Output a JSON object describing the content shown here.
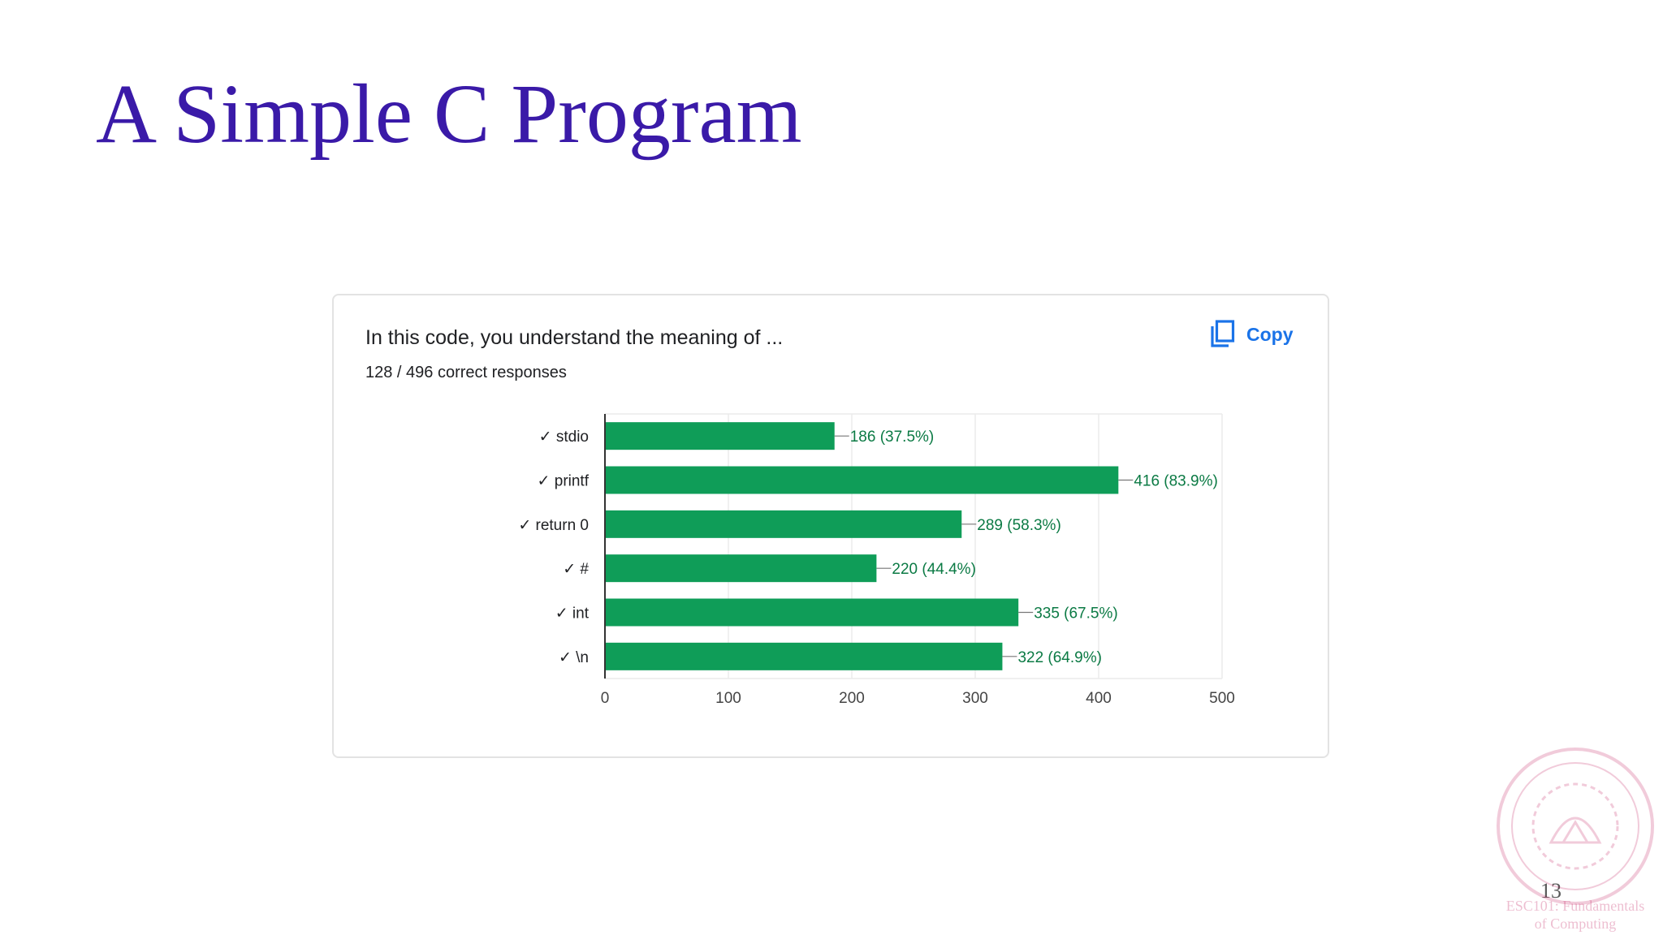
{
  "slide": {
    "title": "A Simple C Program",
    "page_number": "13",
    "title_color": "#3a1aa8",
    "watermark": {
      "line1": "ESC101: Fundamentals",
      "line2": "of Computing"
    }
  },
  "card": {
    "question": "In this code, you understand the meaning of ...",
    "responses": "128 / 496 correct responses",
    "copy_label": "Copy",
    "copy_icon": "copy-icon"
  },
  "chart_data": {
    "type": "bar",
    "orientation": "horizontal",
    "categories": [
      "✓ stdio",
      "✓ printf",
      "✓ return 0",
      "✓ #",
      "✓ int",
      "✓ \\n"
    ],
    "values": [
      186,
      416,
      289,
      220,
      335,
      322
    ],
    "data_labels": [
      "186 (37.5%)",
      "416 (83.9%)",
      "289 (58.3%)",
      "220 (44.4%)",
      "335 (67.5%)",
      "322 (64.9%)"
    ],
    "xticks": [
      0,
      100,
      200,
      300,
      400,
      500
    ],
    "xlim": [
      0,
      500
    ],
    "bar_color": "#0f9d58",
    "label_color": "#0b7a44",
    "grid": true
  }
}
